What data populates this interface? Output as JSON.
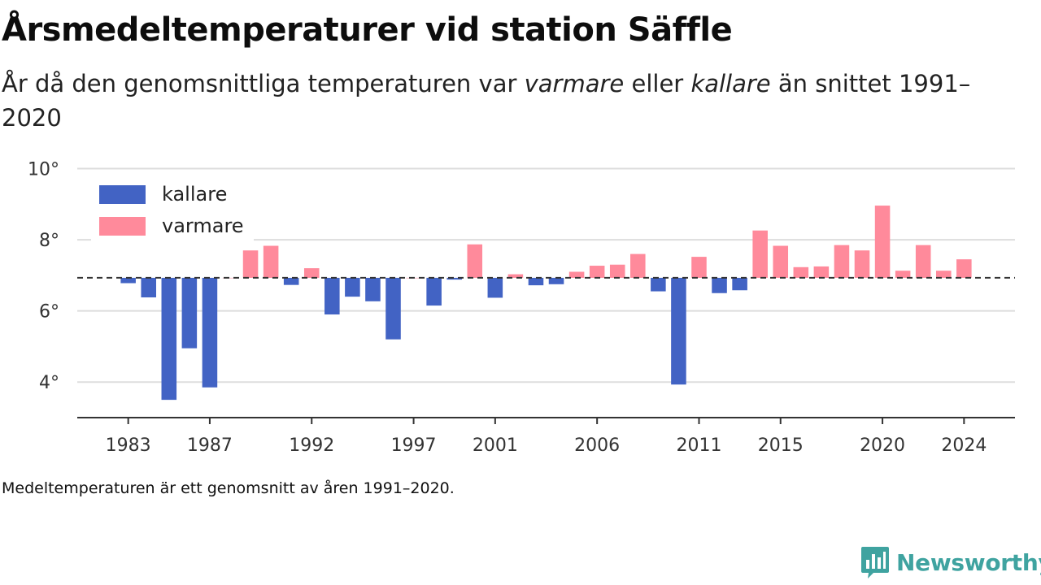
{
  "header": {
    "title": "Årsmedeltemperaturer vid station Säffle",
    "subtitle_pre": "År då den genomsnittliga temperaturen var ",
    "subtitle_warm": "varmare",
    "subtitle_mid": " eller ",
    "subtitle_cold": "kallare",
    "subtitle_post": " än snittet 1991–2020"
  },
  "footnote": "Medeltemperaturen är ett genomsnitt av åren 1991–2020.",
  "brand": {
    "name": "Newsworthy",
    "color": "#3fa3a0",
    "icon": "newsworthy-chart-bubble-icon"
  },
  "chart_data": {
    "type": "bar",
    "baseline": 6.93,
    "ylim": [
      3.0,
      10.4
    ],
    "yticks": [
      4,
      6,
      8,
      10
    ],
    "ytick_suffix": "°",
    "xlim": [
      1980.5,
      2026.5
    ],
    "xticks": [
      1983,
      1987,
      1992,
      1997,
      2001,
      2006,
      2011,
      2015,
      2020,
      2024
    ],
    "legend": {
      "placement": "top-left",
      "items": [
        {
          "label": "kallare",
          "color": "#4263c4"
        },
        {
          "label": "varmare",
          "color": "#ff8a9b"
        }
      ]
    },
    "colors": {
      "colder": "#4263c4",
      "warmer": "#ff8a9b"
    },
    "years": [
      1983,
      1984,
      1985,
      1986,
      1987,
      1988,
      1989,
      1990,
      1991,
      1992,
      1993,
      1994,
      1995,
      1996,
      1997,
      1998,
      1999,
      2000,
      2001,
      2002,
      2003,
      2004,
      2005,
      2006,
      2007,
      2008,
      2009,
      2010,
      2011,
      2012,
      2013,
      2014,
      2015,
      2016,
      2017,
      2018,
      2019,
      2020,
      2021,
      2022,
      2023,
      2024
    ],
    "values": [
      6.78,
      6.38,
      3.5,
      4.95,
      3.85,
      6.93,
      7.7,
      7.83,
      6.73,
      7.2,
      5.9,
      6.4,
      6.27,
      5.2,
      6.93,
      6.15,
      6.88,
      7.87,
      6.37,
      7.03,
      6.72,
      6.75,
      7.1,
      7.27,
      7.3,
      7.6,
      6.55,
      3.93,
      7.52,
      6.5,
      6.58,
      8.26,
      7.83,
      7.23,
      7.25,
      7.85,
      7.7,
      8.96,
      7.13,
      7.85,
      7.13,
      7.45
    ]
  }
}
